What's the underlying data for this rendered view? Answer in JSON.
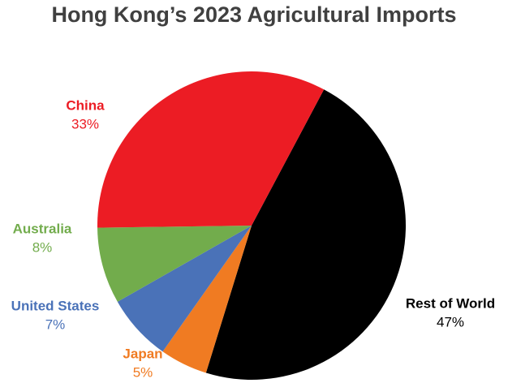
{
  "chart_data": {
    "type": "pie",
    "title": "Hong Kong’s 2023 Agricultural Imports",
    "categories": [
      "Rest of World",
      "Japan",
      "United States",
      "Australia",
      "China"
    ],
    "values": [
      47,
      5,
      7,
      8,
      33
    ],
    "value_labels": [
      "47%",
      "5%",
      "7%",
      "8%",
      "33%"
    ],
    "colors": [
      "#000000",
      "#f07b22",
      "#4a72b8",
      "#72ac4c",
      "#ec1c24"
    ]
  }
}
